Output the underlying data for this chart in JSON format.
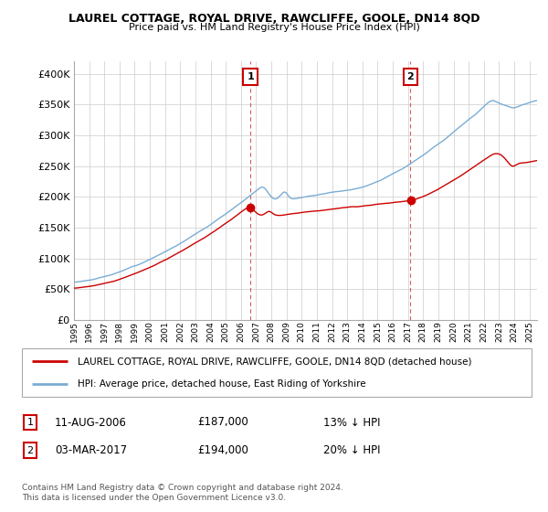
{
  "title": "LAUREL COTTAGE, ROYAL DRIVE, RAWCLIFFE, GOOLE, DN14 8QD",
  "subtitle": "Price paid vs. HM Land Registry's House Price Index (HPI)",
  "legend_red": "LAUREL COTTAGE, ROYAL DRIVE, RAWCLIFFE, GOOLE, DN14 8QD (detached house)",
  "legend_blue": "HPI: Average price, detached house, East Riding of Yorkshire",
  "annotation1_date": "11-AUG-2006",
  "annotation1_price": "£187,000",
  "annotation1_hpi": "13% ↓ HPI",
  "annotation2_date": "03-MAR-2017",
  "annotation2_price": "£194,000",
  "annotation2_hpi": "20% ↓ HPI",
  "footer": "Contains HM Land Registry data © Crown copyright and database right 2024.\nThis data is licensed under the Open Government Licence v3.0.",
  "ylim": [
    0,
    420000
  ],
  "yticks": [
    0,
    50000,
    100000,
    150000,
    200000,
    250000,
    300000,
    350000,
    400000
  ],
  "sale1_x": 2006.617,
  "sale2_x": 2017.167,
  "red_color": "#cc0000",
  "blue_color": "#7aadd4",
  "annotation_box_color": "#cc0000",
  "vline_color": "#cc3333",
  "background_color": "#ffffff",
  "grid_color": "#cccccc"
}
